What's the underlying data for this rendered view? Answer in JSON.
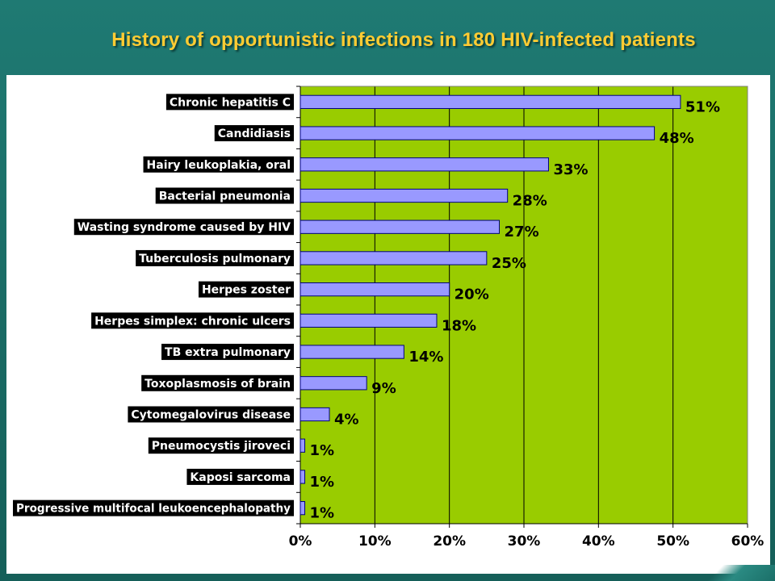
{
  "title": "History of opportunistic infections in 180 HIV-infected patients",
  "colors": {
    "background": "#1b6f68",
    "title": "#ffcc33",
    "plot_area": "#99cc00",
    "bar_fill": "#9999ff",
    "bar_stroke": "#000080",
    "label_box": "#000000",
    "label_text": "#ffffff"
  },
  "chart_data": {
    "type": "bar",
    "orientation": "horizontal",
    "categories": [
      "Chronic hepatitis C",
      "Candidiasis",
      "Hairy leukoplakia, oral",
      "Bacterial pneumonia",
      "Wasting syndrome caused by HIV",
      "Tuberculosis pulmonary",
      "Herpes zoster",
      "Herpes simplex: chronic ulcers",
      "TB extra pulmonary",
      "Toxoplasmosis of brain",
      "Cytomegalovirus disease",
      "Pneumocystis jiroveci",
      "Kaposi sarcoma",
      "Progressive multifocal leukoencephalopathy"
    ],
    "values": [
      51,
      47.5,
      33.3,
      27.8,
      26.7,
      25,
      20,
      18.3,
      13.9,
      8.9,
      3.9,
      0.6,
      0.6,
      0.6
    ],
    "data_labels": [
      "51%",
      "48%",
      "33%",
      "28%",
      "27%",
      "25%",
      "20%",
      "18%",
      "14%",
      "9%",
      "4%",
      "1%",
      "1%",
      "1%"
    ],
    "xlim": [
      0,
      60
    ],
    "xticks": [
      "0%",
      "10%",
      "20%",
      "30%",
      "40%",
      "50%",
      "60%"
    ],
    "grid": true,
    "legend": "none"
  }
}
